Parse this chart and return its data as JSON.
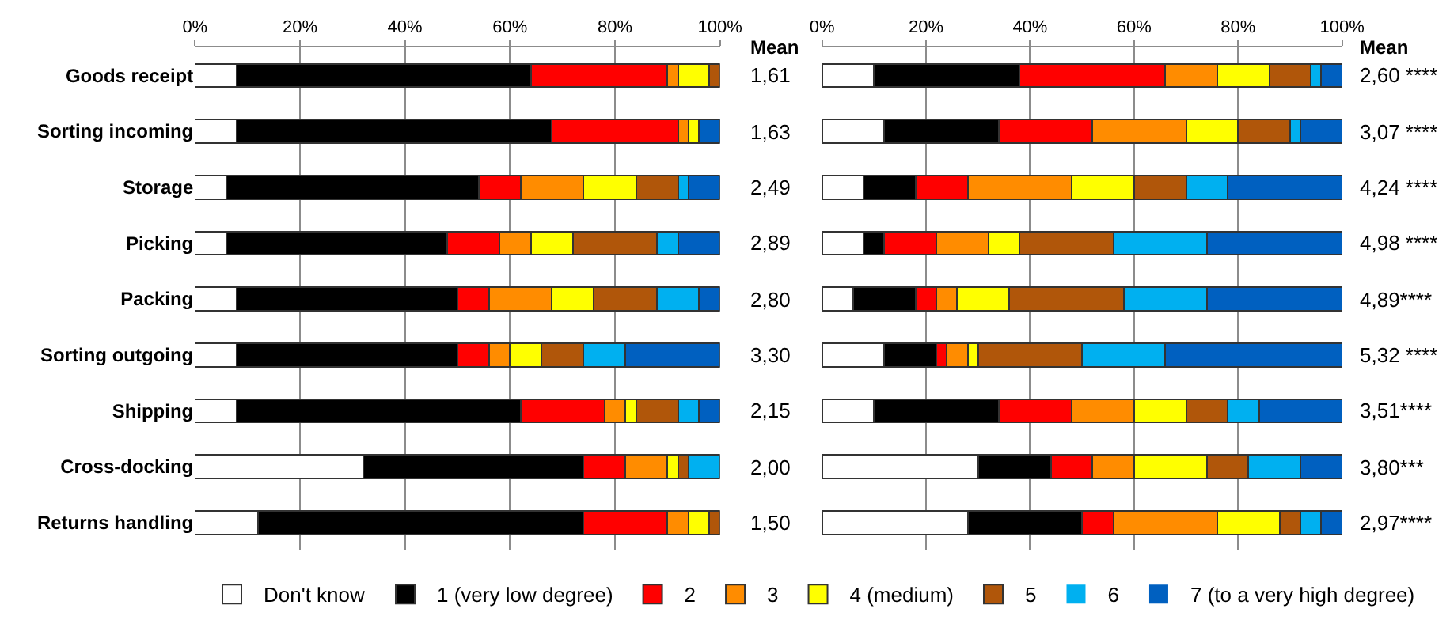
{
  "chart_data": [
    {
      "type": "bar",
      "orientation": "horizontal",
      "stacked": true,
      "categories": [
        "Goods receipt",
        "Sorting incoming",
        "Storage",
        "Picking",
        "Packing",
        "Sorting outgoing",
        "Shipping",
        "Cross-docking",
        "Returns handling"
      ],
      "xlim": [
        0,
        100
      ],
      "xticks": [
        {
          "value": 0,
          "label": "0%"
        },
        {
          "value": 20,
          "label": "20%"
        },
        {
          "value": 40,
          "label": "40%"
        },
        {
          "value": 60,
          "label": "60%"
        },
        {
          "value": 80,
          "label": "80%"
        },
        {
          "value": 100,
          "label": "100%"
        }
      ],
      "grid": "x",
      "legend": "bottom",
      "series": [
        {
          "name": "Don't know",
          "color": "#ffffff",
          "values": [
            8,
            8,
            6,
            6,
            8,
            8,
            8,
            32,
            12
          ]
        },
        {
          "name": "1 (very low degree)",
          "color": "#000000",
          "values": [
            56,
            60,
            48,
            42,
            42,
            42,
            54,
            42,
            62
          ]
        },
        {
          "name": "2",
          "color": "#ff0000",
          "values": [
            26,
            24,
            8,
            10,
            6,
            6,
            16,
            8,
            16
          ]
        },
        {
          "name": "3",
          "color": "#ff8c00",
          "values": [
            2,
            2,
            12,
            6,
            12,
            4,
            4,
            8,
            4
          ]
        },
        {
          "name": "4 (medium)",
          "color": "#ffff00",
          "values": [
            6,
            2,
            10,
            8,
            8,
            6,
            2,
            2,
            4
          ]
        },
        {
          "name": "5",
          "color": "#b0560a",
          "values": [
            2,
            0,
            8,
            16,
            12,
            8,
            8,
            2,
            2
          ]
        },
        {
          "name": "6",
          "color": "#00b0f0",
          "values": [
            0,
            0,
            2,
            4,
            8,
            8,
            4,
            6,
            0
          ]
        },
        {
          "name": "7 (to a very high degree)",
          "color": "#0060c0",
          "values": [
            0,
            4,
            6,
            8,
            4,
            18,
            4,
            0,
            0
          ]
        }
      ],
      "annotations": [
        "Mean",
        "1,61",
        "1,63",
        "2,49",
        "2,89",
        "2,80",
        "3,30",
        "2,15",
        "2,00",
        "1,50"
      ]
    },
    {
      "type": "bar",
      "orientation": "horizontal",
      "stacked": true,
      "categories": [
        null,
        null,
        null,
        null,
        null,
        null,
        null,
        null,
        null
      ],
      "xlim": [
        0,
        100
      ],
      "xticks": [
        {
          "value": 0,
          "label": "0%"
        },
        {
          "value": 20,
          "label": "20%"
        },
        {
          "value": 40,
          "label": "40%"
        },
        {
          "value": 60,
          "label": "60%"
        },
        {
          "value": 80,
          "label": "80%"
        },
        {
          "value": 100,
          "label": "100%"
        }
      ],
      "grid": "x",
      "tick_labels": "x",
      "series": [
        {
          "color": "#ffffff",
          "values": [
            10,
            12,
            8,
            8,
            6,
            12,
            10,
            30,
            28
          ]
        },
        {
          "color": "#000000",
          "values": [
            28,
            22,
            10,
            4,
            12,
            10,
            24,
            14,
            22
          ]
        },
        {
          "color": "#ff0000",
          "values": [
            28,
            18,
            10,
            10,
            4,
            2,
            14,
            8,
            6
          ]
        },
        {
          "color": "#ff8c00",
          "values": [
            10,
            18,
            20,
            10,
            4,
            4,
            12,
            8,
            20
          ]
        },
        {
          "color": "#ffff00",
          "values": [
            10,
            10,
            12,
            6,
            10,
            2,
            10,
            14,
            12
          ]
        },
        {
          "color": "#b0560a",
          "values": [
            8,
            10,
            10,
            18,
            22,
            20,
            8,
            8,
            4
          ]
        },
        {
          "color": "#00b0f0",
          "values": [
            2,
            2,
            8,
            18,
            16,
            16,
            6,
            10,
            4
          ]
        },
        {
          "color": "#0060c0",
          "values": [
            4,
            8,
            22,
            26,
            26,
            34,
            16,
            8,
            4
          ]
        }
      ],
      "annotations": [
        "Mean",
        "2,60 ****",
        "3,07 ****",
        "4,24 ****",
        "4,98 ****",
        "4,89****",
        "5,32 ****",
        "3,51****",
        "3,80***",
        "2,97****"
      ]
    }
  ]
}
